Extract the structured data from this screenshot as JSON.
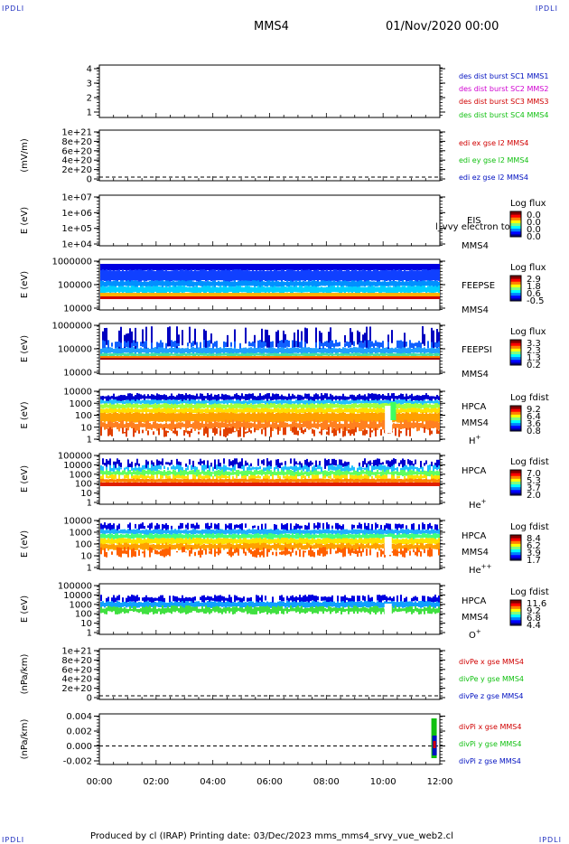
{
  "corner_labels": {
    "tl": "IPDLI",
    "tr": "IPDLI",
    "bl": "IPDLI",
    "br": "IPDLI"
  },
  "header": {
    "title": "MMS4",
    "date": "01/Nov/2020 00:00"
  },
  "footer": {
    "text": "Produced by cl (IRAP)   Printing date: 03/Dec/2023   mms_mms4_srvy_vue_web2.cl"
  },
  "colors": {
    "red": "#d00000",
    "green": "#10c010",
    "blue": "#0010c0",
    "magenta": "#d000d0"
  },
  "chart_data": [
    {
      "id": "des_dist",
      "type": "line",
      "ylabel": "",
      "yticks": [
        "1",
        "2",
        "3",
        "4"
      ],
      "ylim": [
        0.7,
        4.3
      ],
      "series": [
        {
          "name": "des dist burst SC1 MMS1",
          "color": "#0010c0"
        },
        {
          "name": "des dist burst SC2 MMS2",
          "color": "#d000d0"
        },
        {
          "name": "des dist burst SC3 MMS3",
          "color": "#d00000"
        },
        {
          "name": "des dist burst SC4 MMS4",
          "color": "#10c010"
        }
      ]
    },
    {
      "id": "edi",
      "type": "line",
      "ylabel": "(mV/m)",
      "yticks": [
        "0",
        "2e+20",
        "4e+20",
        "6e+20",
        "8e+20",
        "1e+21"
      ],
      "zero_line": true,
      "series": [
        {
          "name": "edi ex gse l2 MMS4",
          "color": "#d00000"
        },
        {
          "name": "edi ey gse l2 MMS4",
          "color": "#10c010"
        },
        {
          "name": "edi ez gse l2 MMS4",
          "color": "#0010c0"
        }
      ]
    },
    {
      "id": "eis",
      "type": "heatmap",
      "ylabel": "E (eV)",
      "yticks": [
        "1e+04",
        "1e+05",
        "1e+06",
        "1e+07"
      ],
      "instrument": "EIS",
      "spacecraft": "MMS4",
      "overlay_text": "l_vvy electron to",
      "colorbar": {
        "title": "Log flux",
        "ticks": [
          "0.0",
          "0.0",
          "0.0",
          "0.0"
        ]
      }
    },
    {
      "id": "feeps_e",
      "type": "heatmap",
      "ylabel": "E (eV)",
      "yticks": [
        "10000",
        "100000",
        "1000000"
      ],
      "instrument": "FEEPSE",
      "spacecraft": "MMS4",
      "colorbar": {
        "title": "Log flux",
        "ticks": [
          "2.9",
          "1.8",
          "0.6",
          "-0.5"
        ]
      }
    },
    {
      "id": "feeps_i",
      "type": "heatmap",
      "ylabel": "E (eV)",
      "yticks": [
        "10000",
        "100000",
        "1000000"
      ],
      "instrument": "FEEPSI",
      "spacecraft": "MMS4",
      "colorbar": {
        "title": "Log flux",
        "ticks": [
          "3.3",
          "2.3",
          "1.3",
          "0.2"
        ]
      }
    },
    {
      "id": "hpca_h",
      "type": "heatmap",
      "ylabel": "E (eV)",
      "yticks": [
        "1",
        "10",
        "100",
        "1000",
        "10000"
      ],
      "instrument": "HPCA",
      "spacecraft": "MMS4",
      "species": "H",
      "species_sup": "+",
      "colorbar": {
        "title": "Log fdist",
        "ticks": [
          "9.2",
          "6.4",
          "3.6",
          "0.8"
        ]
      }
    },
    {
      "id": "hpca_he",
      "type": "heatmap",
      "ylabel": "E (eV)",
      "yticks": [
        "1",
        "10",
        "100",
        "1000",
        "10000",
        "100000"
      ],
      "instrument": "HPCA",
      "spacecraft": "",
      "species": "He",
      "species_sup": "+",
      "colorbar": {
        "title": "Log fdist",
        "ticks": [
          "7.0",
          "5.3",
          "3.7",
          "2.0"
        ]
      }
    },
    {
      "id": "hpca_hepp",
      "type": "heatmap",
      "ylabel": "E (eV)",
      "yticks": [
        "1",
        "10",
        "100",
        "1000",
        "10000"
      ],
      "instrument": "HPCA",
      "spacecraft": "MMS4",
      "species": "He",
      "species_sup": "++",
      "colorbar": {
        "title": "Log fdist",
        "ticks": [
          "8.4",
          "6.2",
          "3.9",
          "1.7"
        ]
      }
    },
    {
      "id": "hpca_o",
      "type": "heatmap",
      "ylabel": "E (eV)",
      "yticks": [
        "1",
        "10",
        "100",
        "1000",
        "10000",
        "100000"
      ],
      "instrument": "HPCA",
      "spacecraft": "MMS4",
      "species": "O",
      "species_sup": "+",
      "colorbar": {
        "title": "Log fdist",
        "ticks": [
          "11.6",
          "9.2",
          "6.8",
          "4.4"
        ]
      }
    },
    {
      "id": "divpe",
      "type": "line",
      "ylabel": "(nPa/km)",
      "yticks": [
        "0",
        "2e+20",
        "4e+20",
        "6e+20",
        "8e+20",
        "1e+21"
      ],
      "zero_line": true,
      "series": [
        {
          "name": "divPe x gse MMS4",
          "color": "#d00000"
        },
        {
          "name": "divPe y gse MMS4",
          "color": "#10c010"
        },
        {
          "name": "divPe z gse MMS4",
          "color": "#0010c0"
        }
      ]
    },
    {
      "id": "divpi",
      "type": "line",
      "ylabel": "(nPa/km)",
      "yticks": [
        "-0.002",
        "0.000",
        "0.002",
        "0.004"
      ],
      "ylim": [
        -0.0025,
        0.0042
      ],
      "zero_line": true,
      "series": [
        {
          "name": "divPi x gse MMS4",
          "color": "#d00000"
        },
        {
          "name": "divPi y gse MMS4",
          "color": "#10c010"
        },
        {
          "name": "divPi z gse MMS4",
          "color": "#0010c0"
        }
      ]
    }
  ],
  "x_axis": {
    "ticks": [
      "00:00",
      "02:00",
      "04:00",
      "06:00",
      "08:00",
      "10:00",
      "12:00"
    ],
    "range_hours": [
      0,
      12
    ]
  }
}
